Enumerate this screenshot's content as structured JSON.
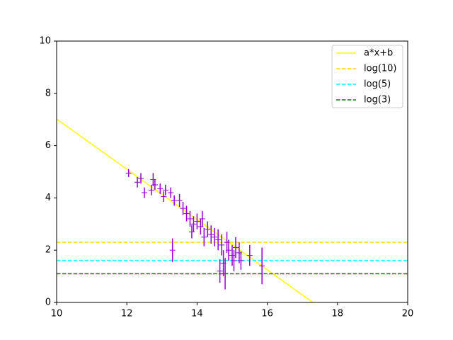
{
  "chart_data": {
    "type": "line",
    "xlim": [
      10,
      20
    ],
    "ylim": [
      0,
      10
    ],
    "xticks": [
      10,
      12,
      14,
      16,
      18,
      20
    ],
    "yticks": [
      0,
      2,
      4,
      6,
      8,
      10
    ],
    "legend": "upper right",
    "series": [
      {
        "name": "a*x+b",
        "color": "#ffff00",
        "style": "solid",
        "x": [
          10,
          17.3
        ],
        "values": [
          7.02,
          0
        ]
      },
      {
        "name": "log(10)",
        "color": "#ffd700",
        "style": "dashed",
        "x": [
          10,
          20
        ],
        "values": [
          2.303,
          2.303
        ]
      },
      {
        "name": "log(5)",
        "color": "#00ffff",
        "style": "dashed",
        "x": [
          10,
          20
        ],
        "values": [
          1.609,
          1.609
        ]
      },
      {
        "name": "log(3)",
        "color": "#008000",
        "style": "dashed",
        "x": [
          10,
          20
        ],
        "values": [
          1.099,
          1.099
        ]
      }
    ],
    "errorbar": {
      "color": "#9400d3",
      "x": [
        12.05,
        12.3,
        12.4,
        12.5,
        12.7,
        12.75,
        12.8,
        12.95,
        13.05,
        13.1,
        13.25,
        13.3,
        13.35,
        13.5,
        13.6,
        13.7,
        13.8,
        13.85,
        13.9,
        14.0,
        14.1,
        14.15,
        14.2,
        14.3,
        14.4,
        14.5,
        14.6,
        14.65,
        14.7,
        14.75,
        14.8,
        14.85,
        14.9,
        15.0,
        15.05,
        15.1,
        15.2,
        15.25,
        15.5,
        15.85
      ],
      "values": [
        4.95,
        4.6,
        4.75,
        4.2,
        4.3,
        4.7,
        4.5,
        4.35,
        4.05,
        4.3,
        4.2,
        2.0,
        3.9,
        3.9,
        3.6,
        3.4,
        3.2,
        2.7,
        3.0,
        3.1,
        2.9,
        3.2,
        2.5,
        2.8,
        2.6,
        2.5,
        2.4,
        1.2,
        2.2,
        1.5,
        1.1,
        2.3,
        2.0,
        1.8,
        1.6,
        2.1,
        1.9,
        1.6,
        1.8,
        1.4
      ],
      "errors": [
        0.15,
        0.2,
        0.2,
        0.2,
        0.2,
        0.25,
        0.2,
        0.2,
        0.2,
        0.2,
        0.2,
        0.45,
        0.2,
        0.25,
        0.25,
        0.3,
        0.3,
        0.25,
        0.3,
        0.3,
        0.3,
        0.3,
        0.35,
        0.3,
        0.35,
        0.35,
        0.4,
        0.45,
        0.4,
        0.5,
        0.6,
        0.4,
        0.4,
        0.4,
        0.4,
        0.4,
        0.4,
        0.35,
        0.4,
        0.7
      ]
    }
  }
}
